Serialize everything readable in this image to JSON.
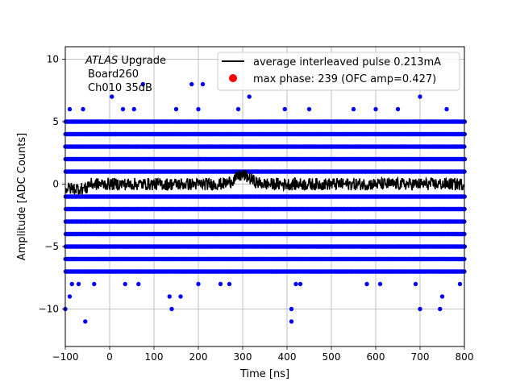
{
  "chart_data": {
    "type": "scatter",
    "title": "",
    "xlabel": "Time [ns]",
    "ylabel": "Amplitude [ADC Counts]",
    "xlim": [
      -100,
      800
    ],
    "ylim": [
      -13,
      11
    ],
    "x_ticks": [
      -100,
      0,
      100,
      200,
      300,
      400,
      500,
      600,
      700,
      800
    ],
    "y_ticks": [
      -10,
      -5,
      0,
      5,
      10
    ],
    "grid": true,
    "legend_position": "top-right",
    "annotation_lines": [
      {
        "italic": "ATLAS",
        "text": " Upgrade"
      },
      {
        "italic": "",
        "text": "Board260"
      },
      {
        "italic": "",
        "text": "Ch010 35dB"
      }
    ],
    "series": [
      {
        "name": "",
        "kind": "scatter",
        "color": "#0000ff",
        "description_levels": {
          "dense_rows_y": [
            -7,
            -6,
            -5,
            -4,
            -3,
            -2,
            -1,
            1,
            2,
            3,
            4,
            5
          ],
          "sparse_points": [
            {
              "x": -100,
              "y": -10
            },
            {
              "x": -55,
              "y": -11
            },
            {
              "x": -90,
              "y": -9
            },
            {
              "x": 140,
              "y": -10
            },
            {
              "x": 135,
              "y": -9
            },
            {
              "x": 160,
              "y": -9
            },
            {
              "x": 200,
              "y": -8
            },
            {
              "x": 410,
              "y": -10
            },
            {
              "x": 410,
              "y": -11
            },
            {
              "x": 700,
              "y": -10
            },
            {
              "x": 745,
              "y": -10
            },
            {
              "x": 750,
              "y": -9
            },
            {
              "x": 5,
              "y": 7
            },
            {
              "x": 75,
              "y": 8
            },
            {
              "x": 185,
              "y": 8
            },
            {
              "x": 210,
              "y": 8
            },
            {
              "x": 315,
              "y": 7
            },
            {
              "x": 700,
              "y": 7
            },
            {
              "x": -85,
              "y": -8
            },
            {
              "x": -70,
              "y": -8
            },
            {
              "x": -35,
              "y": -8
            },
            {
              "x": 35,
              "y": -8
            },
            {
              "x": 65,
              "y": -8
            },
            {
              "x": 250,
              "y": -8
            },
            {
              "x": 270,
              "y": -8
            },
            {
              "x": 420,
              "y": -8
            },
            {
              "x": 430,
              "y": -8
            },
            {
              "x": 580,
              "y": -8
            },
            {
              "x": 610,
              "y": -8
            },
            {
              "x": 690,
              "y": -8
            },
            {
              "x": 790,
              "y": -8
            },
            {
              "x": -90,
              "y": 6
            },
            {
              "x": -60,
              "y": 6
            },
            {
              "x": 30,
              "y": 6
            },
            {
              "x": 55,
              "y": 6
            },
            {
              "x": 150,
              "y": 6
            },
            {
              "x": 200,
              "y": 6
            },
            {
              "x": 290,
              "y": 6
            },
            {
              "x": 395,
              "y": 6
            },
            {
              "x": 450,
              "y": 6
            },
            {
              "x": 550,
              "y": 6
            },
            {
              "x": 600,
              "y": 6
            },
            {
              "x": 650,
              "y": 6
            },
            {
              "x": 760,
              "y": 6
            }
          ]
        }
      },
      {
        "name": "average interleaved pulse 0.213mA",
        "kind": "line",
        "color": "#000000",
        "baseline": 0,
        "noise_amplitude": 0.5,
        "bump_center": 300,
        "bump_height": 0.7
      },
      {
        "name": "max phase: 239 (OFC amp=0.427)",
        "kind": "scatter",
        "color": "#ff0000",
        "points": []
      }
    ]
  }
}
